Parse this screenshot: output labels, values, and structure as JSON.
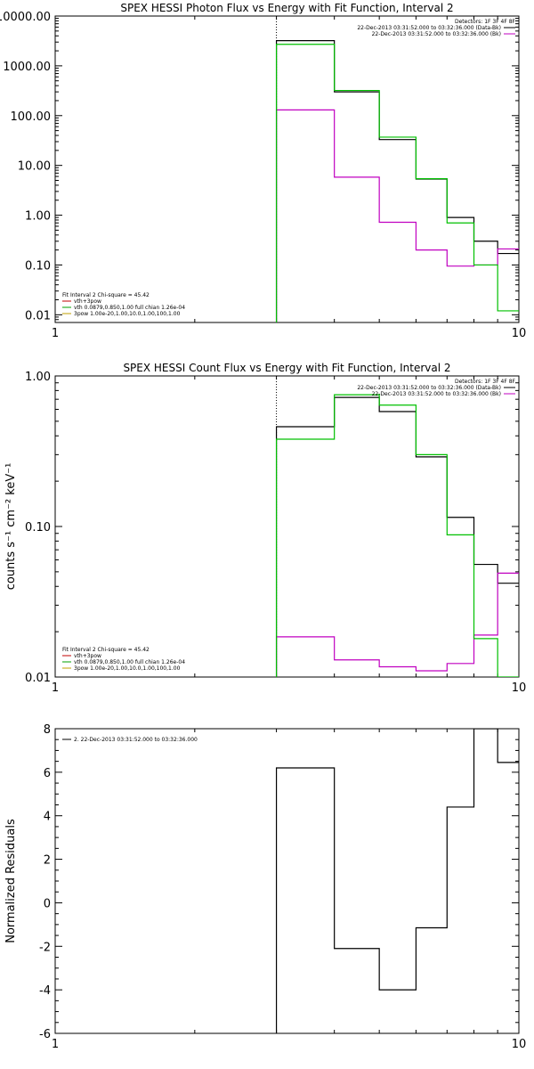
{
  "chart_data": [
    {
      "type": "line",
      "title": "SPEX HESSI Photon Flux vs Energy with Fit Function, Interval 2",
      "xlabel": "",
      "ylabel": "",
      "xscale": "log",
      "yscale": "log",
      "xlim": [
        1,
        10
      ],
      "ylim": [
        0.007,
        10000
      ],
      "x_ticks": [
        "1",
        "10"
      ],
      "y_ticks": [
        {
          "v": 10000,
          "label": "10000.00"
        },
        {
          "v": 1000,
          "label": "1000.00"
        },
        {
          "v": 100,
          "label": "100.00"
        },
        {
          "v": 10,
          "label": "10.00"
        },
        {
          "v": 1,
          "label": "1.00"
        },
        {
          "v": 0.1,
          "label": "0.10"
        },
        {
          "v": 0.01,
          "label": "0.01"
        }
      ],
      "vline": 3,
      "legend_right": {
        "header": "Detectors: 1F 3F 4F 8F",
        "entries": [
          {
            "text": "22-Dec-2013 03:31:52.000 to 03:32:36.000 (Data-Bk)",
            "color": "#000000"
          },
          {
            "text": "22-Dec-2013 03:31:52.000 to 03:32:36.000 (Bk)",
            "color": "#c000c0"
          }
        ]
      },
      "legend_left": {
        "header": "Fit Interval 2   Chi-square = 45.42",
        "entries": [
          {
            "text": "vth+3pow",
            "color": "#c00000"
          },
          {
            "text": "vth 0.0879,0.850,1.00  full chian 1.26e-04",
            "color": "#00a000"
          },
          {
            "text": "3pow 1.00e-20,1.00,10.0,1.00,100,1.00",
            "color": "#c0a000"
          }
        ]
      },
      "edges": [
        3,
        4,
        5,
        6,
        7,
        8,
        9,
        10
      ],
      "series": [
        {
          "name": "Data-Bk",
          "color": "#000000",
          "values": [
            3200,
            300,
            33,
            5.3,
            0.9,
            0.3,
            0.17
          ]
        },
        {
          "name": "Bk",
          "color": "#c000c0",
          "values": [
            130,
            5.8,
            0.72,
            0.2,
            0.095,
            0.1,
            0.21
          ]
        },
        {
          "name": "vth",
          "color": "#00c000",
          "values": [
            2700,
            320,
            37,
            5.4,
            0.7,
            0.1,
            0.012
          ]
        }
      ]
    },
    {
      "type": "line",
      "title": "SPEX HESSI Count Flux vs Energy with Fit Function, Interval 2",
      "xlabel": "",
      "ylabel": "counts s⁻¹ cm⁻² keV⁻¹",
      "xscale": "log",
      "yscale": "log",
      "xlim": [
        1,
        10
      ],
      "ylim": [
        0.01,
        1.0
      ],
      "x_ticks": [
        "1",
        "10"
      ],
      "y_ticks": [
        {
          "v": 1.0,
          "label": "1.00"
        },
        {
          "v": 0.1,
          "label": "0.10"
        },
        {
          "v": 0.01,
          "label": "0.01"
        }
      ],
      "vline": 3,
      "legend_right": {
        "header": "Detectors: 1F 3F 4F 8F",
        "entries": [
          {
            "text": "22-Dec-2013 03:31:52.000 to 03:32:36.000 (Data-Bk)",
            "color": "#000000"
          },
          {
            "text": "22-Dec-2013 03:31:52.000 to 03:32:36.000 (Bk)",
            "color": "#c000c0"
          }
        ]
      },
      "legend_left": {
        "header": "Fit Interval 2   Chi-square = 45.42",
        "entries": [
          {
            "text": "vth+3pow",
            "color": "#c00000"
          },
          {
            "text": "vth 0.0879,0.850,1.00  full chian 1.26e-04",
            "color": "#00a000"
          },
          {
            "text": "3pow 1.00e-20,1.00,10.0,1.00,100,1.00",
            "color": "#c0a000"
          }
        ]
      },
      "edges": [
        3,
        4,
        5,
        6,
        7,
        8,
        9,
        10
      ],
      "series": [
        {
          "name": "Data-Bk",
          "color": "#000000",
          "values": [
            0.46,
            0.72,
            0.58,
            0.29,
            0.115,
            0.056,
            0.042
          ]
        },
        {
          "name": "Bk",
          "color": "#c000c0",
          "values": [
            0.0185,
            0.013,
            0.0117,
            0.011,
            0.0123,
            0.019,
            0.049
          ]
        },
        {
          "name": "vth",
          "color": "#00c000",
          "values": [
            0.38,
            0.75,
            0.64,
            0.3,
            0.088,
            0.018,
            0.002
          ]
        }
      ]
    },
    {
      "type": "line",
      "title": "",
      "xlabel": "",
      "ylabel": "Normalized Residuals",
      "xscale": "log",
      "yscale": "linear",
      "xlim": [
        1,
        10
      ],
      "ylim": [
        -6,
        8
      ],
      "x_ticks": [
        "1",
        "10"
      ],
      "y_ticks": [
        {
          "v": 8,
          "label": "8"
        },
        {
          "v": 6,
          "label": "6"
        },
        {
          "v": 4,
          "label": "4"
        },
        {
          "v": 2,
          "label": "2"
        },
        {
          "v": 0,
          "label": "0"
        },
        {
          "v": -2,
          "label": "-2"
        },
        {
          "v": -4,
          "label": "-4"
        },
        {
          "v": -6,
          "label": "-6"
        }
      ],
      "legend_left": {
        "header": "",
        "entries": [
          {
            "text": "2. 22-Dec-2013 03:31:52.000 to 03:32:36.000",
            "color": "#000000"
          }
        ]
      },
      "edges": [
        3,
        4,
        5,
        6,
        7,
        8,
        9,
        10
      ],
      "series": [
        {
          "name": "",
          "color": "#000000",
          "values": [
            6.2,
            -2.1,
            -4.0,
            -1.15,
            4.4,
            8.5,
            6.45
          ]
        }
      ]
    }
  ]
}
